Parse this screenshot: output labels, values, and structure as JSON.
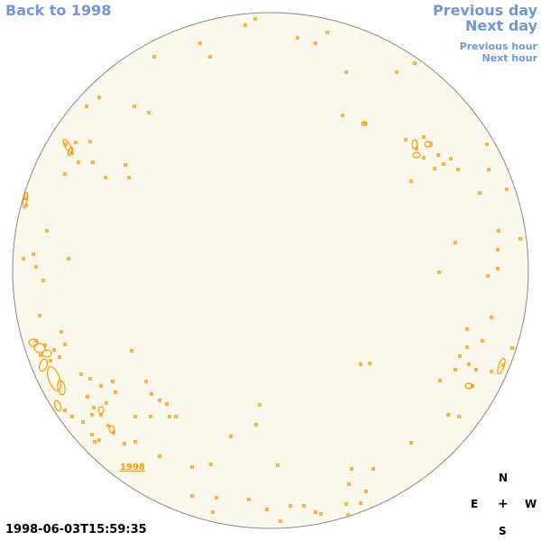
{
  "nav": {
    "back_label": "Back to 1998",
    "prev_day_label": "Previous day",
    "next_day_label": "Next day",
    "prev_hour_label": "Previous hour",
    "next_hour_label": "Next hour"
  },
  "disk": {
    "year_label": "1998",
    "colors": {
      "disk_fill": "#fdf8ec",
      "disk_outline": "#888888",
      "contour": "#ff9900"
    }
  },
  "compass": {
    "north": "N",
    "east": "E",
    "center": "+",
    "west": "W",
    "south": "S"
  },
  "timestamp": "1998-06-03T15:59:35"
}
